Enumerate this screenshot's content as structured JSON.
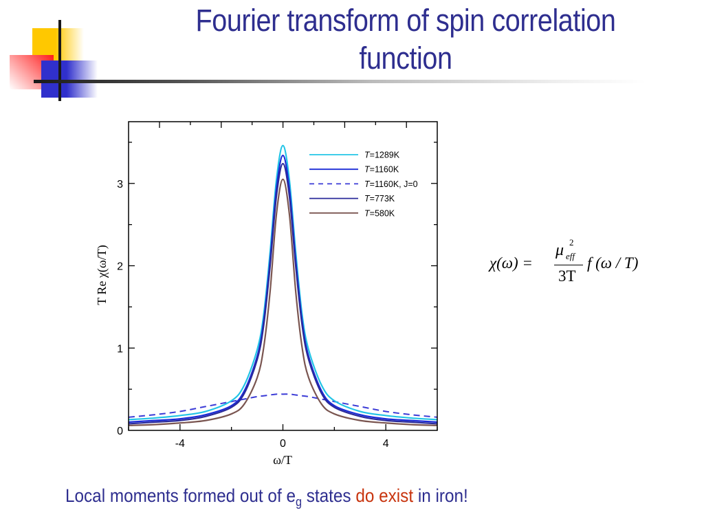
{
  "slide": {
    "title_line1": "Fourier transform of spin correlation",
    "title_line2": "function",
    "caption": {
      "part1": "Local moments formed out of e",
      "subscript": "g",
      "part2": " states ",
      "highlight": "do exist",
      "part3": " in iron!"
    },
    "colors": {
      "title": "#2e2e8f",
      "caption": "#2e2e8f",
      "highlight": "#c8340e"
    }
  },
  "formula": {
    "lhs": "χ(ω) =",
    "numerator_base": "μ",
    "numerator_sup": "2",
    "numerator_sub": "eff",
    "denominator": "3T",
    "rhs": "f (ω / T)"
  },
  "chart_data": {
    "type": "line",
    "title": "",
    "xlabel": "ω/T",
    "ylabel": "T Re χ(ω/T)",
    "xlim": [
      -6,
      6
    ],
    "ylim": [
      0,
      3.75
    ],
    "xticks": [
      -4,
      0,
      4
    ],
    "yticks": [
      0,
      1,
      2,
      3
    ],
    "grid": false,
    "legend_position": "upper right",
    "x": [
      -6,
      -5,
      -4,
      -3,
      -2,
      -1.5,
      -1,
      -0.75,
      -0.5,
      -0.25,
      0,
      0.25,
      0.5,
      0.75,
      1,
      1.5,
      2,
      3,
      4,
      5,
      6
    ],
    "series": [
      {
        "name": "T=1289K",
        "color": "#22c4e6",
        "style": "solid",
        "values": [
          0.13,
          0.15,
          0.18,
          0.23,
          0.36,
          0.55,
          0.98,
          1.4,
          2.16,
          3.05,
          3.46,
          3.05,
          2.16,
          1.4,
          0.98,
          0.55,
          0.36,
          0.23,
          0.18,
          0.15,
          0.13
        ]
      },
      {
        "name": "T=1160K",
        "color": "#1a2ad6",
        "style": "solid",
        "values": [
          0.1,
          0.12,
          0.14,
          0.19,
          0.3,
          0.48,
          0.9,
          1.32,
          2.06,
          2.94,
          3.34,
          2.94,
          2.06,
          1.32,
          0.9,
          0.48,
          0.3,
          0.19,
          0.14,
          0.12,
          0.1
        ]
      },
      {
        "name": "T=1160K, J=0",
        "color": "#3a3ad6",
        "style": "dashed",
        "values": [
          0.16,
          0.19,
          0.23,
          0.29,
          0.35,
          0.38,
          0.41,
          0.42,
          0.43,
          0.44,
          0.44,
          0.44,
          0.43,
          0.42,
          0.41,
          0.38,
          0.35,
          0.29,
          0.23,
          0.19,
          0.16
        ]
      },
      {
        "name": "T=773K",
        "color": "#2a2a9a",
        "style": "solid",
        "values": [
          0.08,
          0.1,
          0.12,
          0.17,
          0.28,
          0.45,
          0.86,
          1.27,
          1.99,
          2.85,
          3.24,
          2.85,
          1.99,
          1.27,
          0.86,
          0.45,
          0.28,
          0.17,
          0.12,
          0.1,
          0.08
        ]
      },
      {
        "name": "T=580K",
        "color": "#7a5550",
        "style": "solid",
        "values": [
          0.06,
          0.07,
          0.09,
          0.12,
          0.2,
          0.32,
          0.64,
          1.0,
          1.68,
          2.63,
          3.05,
          2.63,
          1.68,
          1.0,
          0.64,
          0.32,
          0.2,
          0.12,
          0.09,
          0.07,
          0.06
        ]
      }
    ]
  }
}
